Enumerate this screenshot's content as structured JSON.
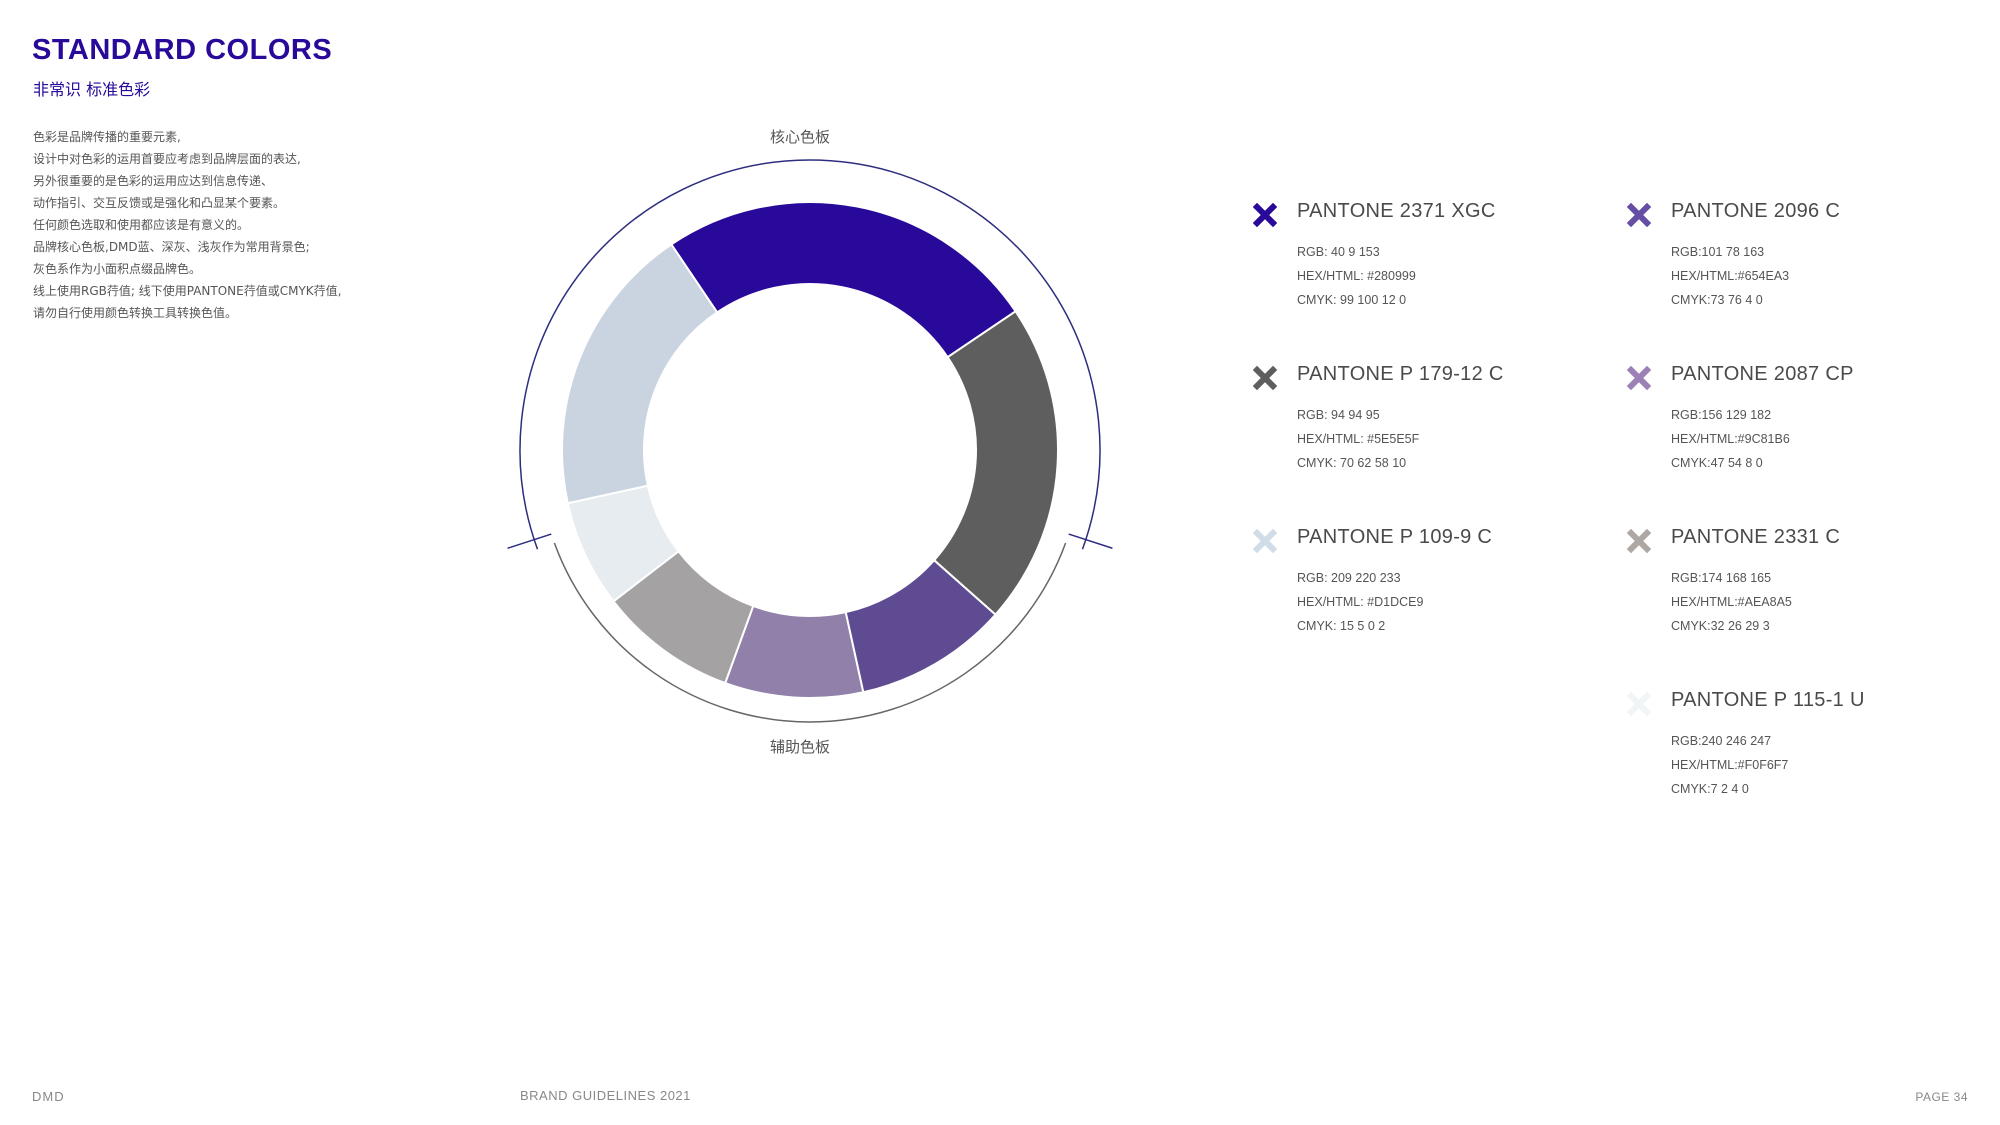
{
  "header": {
    "title": "STANDARD COLORS",
    "subtitle": "非常识 标准色彩"
  },
  "intro": {
    "lines": [
      "色彩是品牌传播的重要元素,",
      "设计中对色彩的运用首要应考虑到品牌层面的表达,",
      "另外很重要的是色彩的运用应达到信息传递、",
      "动作指引、交互反馈或是强化和凸显某个要素。",
      "任何颜色选取和使用都应该是有意义的。",
      "品牌核心色板,DMD蓝、深灰、浅灰作为常用背景色;",
      "灰色系作为小面积点缀品牌色。",
      "线上使用RGB荇值; 线下使用PANTONE荇值或CMYK荇值,",
      "请勿自行使用颜色转换工具转换色值。"
    ]
  },
  "wheel": {
    "top_label": "核心色板",
    "bottom_label": "辅助色板",
    "core_segments": [
      {
        "name": "PANTONE 2371 XGC",
        "hex": "#280999",
        "share": 0.25
      },
      {
        "name": "PANTONE P 179-12 C",
        "hex": "#5E5E5F",
        "share": 0.21
      },
      {
        "name": "PANTONE P 109-9 C",
        "hex": "#C9D4E0",
        "share": 0.19
      }
    ],
    "support_segments": [
      {
        "name": "PANTONE 2096 C",
        "hex": "#5E4B91",
        "share": 0.1
      },
      {
        "name": "PANTONE 2087 CP",
        "hex": "#9080AA",
        "share": 0.09
      },
      {
        "name": "PANTONE 2331 C",
        "hex": "#A5A2A3",
        "share": 0.09
      },
      {
        "name": "PANTONE P 115-1 U",
        "hex": "#E6ECEF",
        "share": 0.07
      }
    ],
    "arc_color": "#2d2d80"
  },
  "swatches": [
    {
      "icon": "cross-icon",
      "color": "#280999",
      "name": "PANTONE  2371 XGC",
      "rgb": "RGB:  40 9 153",
      "hex": "HEX/HTML:  #280999",
      "cmyk": "CMYK:  99 100 12 0"
    },
    {
      "icon": "cross-icon",
      "color": "#5E5E5F",
      "name": "PANTONE  P 179-12 C",
      "rgb": "RGB:  94 94 95",
      "hex": "HEX/HTML:  #5E5E5F",
      "cmyk": "CMYK:  70 62 58 10"
    },
    {
      "icon": "cross-icon",
      "color": "#D1DCE9",
      "name": "PANTONE  P 109-9 C",
      "rgb": "RGB:  209 220 233",
      "hex": "HEX/HTML:  #D1DCE9",
      "cmyk": "CMYK:  15 5 0 2"
    },
    {
      "icon": "cross-icon",
      "color": "#654EA3",
      "name": "PANTONE 2096 C",
      "rgb": "RGB:101 78 163",
      "hex": "HEX/HTML:#654EA3",
      "cmyk": "CMYK:73 76 4 0"
    },
    {
      "icon": "cross-icon",
      "color": "#9C81B6",
      "name": "PANTONE 2087 CP",
      "rgb": "RGB:156 129 182",
      "hex": "HEX/HTML:#9C81B6",
      "cmyk": "CMYK:47 54 8 0"
    },
    {
      "icon": "cross-icon",
      "color": "#AEA8A5",
      "name": "PANTONE 2331 C",
      "rgb": "RGB:174 168 165",
      "hex": "HEX/HTML:#AEA8A5",
      "cmyk": "CMYK:32 26 29 3"
    },
    {
      "icon": "cross-icon",
      "color": "#F0F6F7",
      "name": "PANTONE P 115-1 U",
      "rgb": "RGB:240 246 247",
      "hex": "HEX/HTML:#F0F6F7",
      "cmyk": "CMYK:7 2 4 0"
    }
  ],
  "footer": {
    "logo": "DMD",
    "center": "BRAND GUIDELINES 2021",
    "page": "PAGE 34"
  }
}
